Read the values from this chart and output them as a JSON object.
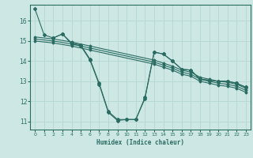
{
  "title": "",
  "xlabel": "Humidex (Indice chaleur)",
  "bg_color": "#cde8e4",
  "grid_color": "#b8d8d4",
  "line_color": "#2a6b62",
  "xlim": [
    -0.5,
    23.5
  ],
  "ylim": [
    10.6,
    16.8
  ],
  "xticks": [
    0,
    1,
    2,
    3,
    4,
    5,
    6,
    7,
    8,
    9,
    10,
    11,
    12,
    13,
    14,
    15,
    16,
    17,
    18,
    19,
    20,
    21,
    22,
    23
  ],
  "yticks": [
    11,
    12,
    13,
    14,
    15,
    16
  ],
  "line1": {
    "x": [
      0,
      1,
      2,
      3,
      4,
      5,
      6,
      7,
      8,
      9,
      10,
      11,
      12,
      13,
      14,
      15,
      16,
      17,
      18,
      19,
      20,
      21,
      22,
      23
    ],
    "y": [
      16.6,
      15.3,
      15.15,
      15.35,
      14.85,
      14.75,
      14.05,
      12.85,
      11.45,
      11.05,
      11.1,
      11.1,
      12.15,
      14.45,
      14.35,
      14.0,
      13.6,
      13.55,
      13.1,
      13.05,
      13.0,
      13.0,
      12.9,
      12.7
    ]
  },
  "line2": {
    "x": [
      2,
      3,
      4,
      5,
      6,
      7,
      8,
      9,
      10,
      11,
      12,
      13,
      14,
      15,
      16,
      17,
      18,
      19,
      20,
      21,
      22,
      23
    ],
    "y": [
      15.15,
      15.35,
      14.9,
      14.8,
      14.1,
      12.9,
      11.5,
      11.1,
      11.1,
      11.1,
      12.2,
      14.45,
      14.35,
      14.0,
      13.6,
      13.55,
      13.1,
      13.05,
      13.0,
      13.0,
      12.9,
      12.7
    ]
  },
  "line3": {
    "x": [
      0,
      2,
      4,
      6,
      13,
      14,
      15,
      16,
      17,
      18,
      19,
      20,
      21,
      22,
      23
    ],
    "y": [
      15.2,
      15.1,
      14.95,
      14.75,
      14.05,
      13.9,
      13.75,
      13.55,
      13.45,
      13.2,
      13.1,
      13.0,
      12.95,
      12.85,
      12.65
    ]
  },
  "line4": {
    "x": [
      0,
      2,
      4,
      6,
      13,
      14,
      15,
      16,
      17,
      18,
      19,
      20,
      21,
      22,
      23
    ],
    "y": [
      15.1,
      15.0,
      14.85,
      14.65,
      13.95,
      13.8,
      13.65,
      13.45,
      13.35,
      13.1,
      13.0,
      12.9,
      12.85,
      12.75,
      12.55
    ]
  },
  "line5": {
    "x": [
      0,
      2,
      4,
      6,
      13,
      14,
      15,
      16,
      17,
      18,
      19,
      20,
      21,
      22,
      23
    ],
    "y": [
      15.0,
      14.9,
      14.75,
      14.55,
      13.85,
      13.7,
      13.55,
      13.35,
      13.25,
      13.0,
      12.9,
      12.8,
      12.75,
      12.65,
      12.45
    ]
  }
}
